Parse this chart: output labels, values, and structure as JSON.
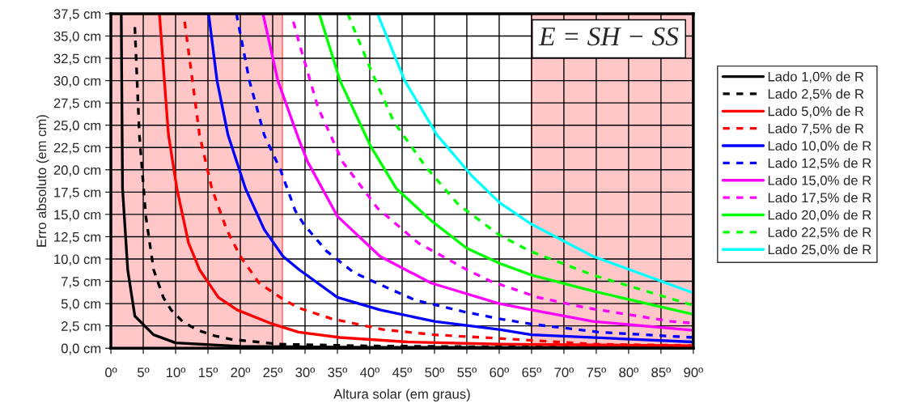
{
  "chart_data": {
    "type": "line",
    "xlabel": "Altura solar (em graus)",
    "ylabel": "Erro absoluto (em cm)",
    "annotations": [
      "E = SH − SS"
    ],
    "xlim": [
      0,
      90
    ],
    "ylim": [
      0,
      37.5
    ],
    "xticks": [
      {
        "value": 0,
        "label": "0º"
      },
      {
        "value": 5,
        "label": "5º"
      },
      {
        "value": 10,
        "label": "10º"
      },
      {
        "value": 15,
        "label": "15º"
      },
      {
        "value": 20,
        "label": "20º"
      },
      {
        "value": 25,
        "label": "25º"
      },
      {
        "value": 30,
        "label": "30º"
      },
      {
        "value": 35,
        "label": "35º"
      },
      {
        "value": 40,
        "label": "40º"
      },
      {
        "value": 45,
        "label": "45º"
      },
      {
        "value": 50,
        "label": "50º"
      },
      {
        "value": 55,
        "label": "55º"
      },
      {
        "value": 60,
        "label": "60º"
      },
      {
        "value": 65,
        "label": "65º"
      },
      {
        "value": 70,
        "label": "70º"
      },
      {
        "value": 75,
        "label": "75º"
      },
      {
        "value": 80,
        "label": "80º"
      },
      {
        "value": 85,
        "label": "85º"
      },
      {
        "value": 90,
        "label": "90º"
      }
    ],
    "yticks": [
      {
        "value": 0,
        "label": "0,0 cm"
      },
      {
        "value": 2.5,
        "label": "2,5 cm"
      },
      {
        "value": 5,
        "label": "5,0 cm"
      },
      {
        "value": 7.5,
        "label": "7,5 cm"
      },
      {
        "value": 10,
        "label": "10,0 cm"
      },
      {
        "value": 12.5,
        "label": "12,5 cm"
      },
      {
        "value": 15,
        "label": "15,0 cm"
      },
      {
        "value": 17.5,
        "label": "17,5 cm"
      },
      {
        "value": 20,
        "label": "20,0 cm"
      },
      {
        "value": 22.5,
        "label": "22,5 cm"
      },
      {
        "value": 25,
        "label": "25,0 cm"
      },
      {
        "value": 27.5,
        "label": "27,5 cm"
      },
      {
        "value": 30,
        "label": "30,0 cm"
      },
      {
        "value": 32.5,
        "label": "32,5 cm"
      },
      {
        "value": 35,
        "label": "35,0 cm"
      },
      {
        "value": 37.5,
        "label": "37,5 cm"
      }
    ],
    "grid": true,
    "legend": "right",
    "marker": "none",
    "bands": [
      {
        "axis": "x",
        "from": 0,
        "to": 26.5,
        "color": "#ff9999"
      },
      {
        "axis": "x",
        "from": 65,
        "to": 90,
        "color": "#ff9999"
      }
    ],
    "series": [
      {
        "name": "Lado 1,0% de R",
        "color": "#000000",
        "line_style": "solid",
        "x": [
          1.6,
          1.8,
          2.6,
          3.7,
          6.6,
          10,
          20,
          40,
          90
        ],
        "values": [
          37.5,
          17.9,
          8.8,
          3.6,
          1.5,
          0.6,
          0.2,
          0.1,
          0.05
        ]
      },
      {
        "name": "Lado 2,5% de R",
        "color": "#000000",
        "line_style": "dashed",
        "x": [
          3.7,
          4.4,
          5.4,
          6.6,
          8.1,
          9.3,
          11.2,
          13.5,
          16,
          18.5,
          26,
          40,
          60,
          90
        ],
        "values": [
          36,
          23.9,
          14.8,
          8.8,
          5.7,
          4.3,
          2.9,
          2.0,
          1.4,
          1.0,
          0.45,
          0.25,
          0.15,
          0.1
        ]
      },
      {
        "name": "Lado 5,0% de R",
        "color": "#ff0000",
        "line_style": "solid",
        "x": [
          7.5,
          8.9,
          10.2,
          12,
          13.7,
          16.6,
          19.5,
          25,
          29,
          35.4,
          45.8,
          60,
          90
        ],
        "values": [
          37.5,
          23.9,
          17.9,
          11.8,
          8.8,
          5.7,
          4.3,
          2.7,
          1.8,
          1.2,
          0.7,
          0.45,
          0.27
        ]
      },
      {
        "name": "Lado 7,5% de R",
        "color": "#ff0000",
        "line_style": "dashed",
        "x": [
          11.4,
          12.6,
          13.7,
          15.6,
          17.9,
          20,
          22.9,
          26.8,
          29.1,
          34.1,
          42,
          50,
          60,
          74.5,
          90
        ],
        "values": [
          36.6,
          30,
          23.9,
          17.9,
          13.3,
          10.3,
          7.3,
          5.4,
          4.5,
          3.3,
          2.1,
          1.5,
          1.1,
          0.45,
          0.3
        ]
      },
      {
        "name": "Lado 10,0% de R",
        "color": "#0000ff",
        "line_style": "solid",
        "x": [
          15.1,
          16.4,
          18.1,
          20.8,
          23.7,
          26.6,
          29.1,
          35,
          41.6,
          50,
          60,
          65,
          90
        ],
        "values": [
          37.5,
          30,
          23.9,
          17.9,
          13.3,
          10.3,
          8.8,
          5.7,
          4.3,
          3.0,
          2.1,
          1.5,
          0.7
        ]
      },
      {
        "name": "Lado 12,5% de R",
        "color": "#0000ff",
        "line_style": "dashed",
        "x": [
          19.4,
          21.4,
          23.7,
          26.2,
          28.5,
          29.8,
          33.3,
          37.5,
          42,
          47,
          54.5,
          60,
          65,
          75.4,
          90
        ],
        "values": [
          37.5,
          30,
          23.9,
          20,
          15.4,
          13.9,
          10.9,
          8.5,
          7.0,
          5.4,
          4.1,
          3.3,
          2.7,
          1.8,
          1.2
        ]
      },
      {
        "name": "Lado 15,0% de R",
        "color": "#ff00ff",
        "line_style": "solid",
        "x": [
          23.5,
          25.8,
          29.1,
          30.4,
          35,
          41.6,
          49.5,
          60,
          65,
          74.5,
          90
        ],
        "values": [
          37.5,
          30,
          23.3,
          20.9,
          14.8,
          10.3,
          7.3,
          5.0,
          4.3,
          3.0,
          2.0
        ]
      },
      {
        "name": "Lado 17,5% de R",
        "color": "#ff00ff",
        "line_style": "dashed",
        "x": [
          28.2,
          29.1,
          32,
          35.8,
          41.2,
          47.5,
          55,
          58.7,
          66,
          73.7,
          86.6,
          90
        ],
        "values": [
          36.6,
          34.2,
          27,
          20.9,
          15.7,
          11.8,
          8.8,
          7.5,
          5.7,
          4.5,
          3.0,
          2.8
        ]
      },
      {
        "name": "Lado 20,0% de R",
        "color": "#00ff00",
        "line_style": "solid",
        "x": [
          32.2,
          35.4,
          40.1,
          44.1,
          49.5,
          55,
          60.1,
          65,
          74.5,
          90
        ],
        "values": [
          37.5,
          30,
          22.7,
          17.9,
          14.3,
          11.2,
          9.5,
          8.2,
          6.4,
          3.8
        ]
      },
      {
        "name": "Lado 22,5% de R",
        "color": "#00ff00",
        "line_style": "dashed",
        "x": [
          36.6,
          40,
          43.7,
          48.7,
          53.7,
          60,
          64.7,
          74.5,
          90
        ],
        "values": [
          37.5,
          31.5,
          25.4,
          20.3,
          16.1,
          12.7,
          10.9,
          8.2,
          4.8
        ]
      },
      {
        "name": "Lado 25,0% de R",
        "color": "#00ffff",
        "line_style": "solid",
        "x": [
          41.2,
          45.4,
          50.4,
          55.8,
          60.1,
          65,
          74.5,
          90
        ],
        "values": [
          37.5,
          30,
          23.9,
          19.3,
          16.3,
          13.9,
          10.3,
          6.2
        ]
      }
    ]
  }
}
